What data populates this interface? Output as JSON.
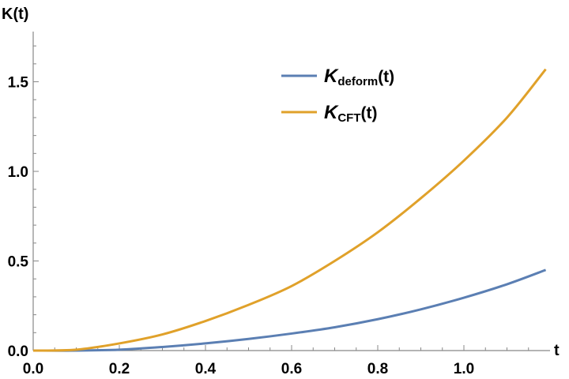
{
  "chart_data": {
    "type": "line",
    "xlabel": "t",
    "ylabel": "K(t)",
    "xlim": [
      0.0,
      1.2
    ],
    "ylim": [
      0.0,
      1.78
    ],
    "xticks": [
      0.0,
      0.2,
      0.4,
      0.6,
      0.8,
      1.0
    ],
    "xtick_labels": [
      "0.0",
      "0.2",
      "0.4",
      "0.6",
      "0.8",
      "1.0"
    ],
    "yticks": [
      0.0,
      0.5,
      1.0,
      1.5
    ],
    "ytick_labels": [
      "0.0",
      "0.5",
      "1.0",
      "1.5"
    ],
    "grid": false,
    "legend_position": "top-right",
    "series": [
      {
        "name": "K_deform(t)",
        "label_main": "K",
        "label_sub": "deform",
        "label_tail": "(t)",
        "color": "#5b7fb3",
        "x": [
          0.0,
          0.1,
          0.2,
          0.3,
          0.4,
          0.5,
          0.6,
          0.7,
          0.8,
          0.9,
          1.0,
          1.1,
          1.19
        ],
        "y": [
          0.0,
          0.0,
          0.005,
          0.02,
          0.04,
          0.065,
          0.095,
          0.13,
          0.175,
          0.23,
          0.295,
          0.37,
          0.45
        ]
      },
      {
        "name": "K_CFT(t)",
        "label_main": "K",
        "label_sub": "CFT",
        "label_tail": "(t)",
        "color": "#e0a12a",
        "x": [
          0.0,
          0.1,
          0.2,
          0.3,
          0.4,
          0.5,
          0.6,
          0.7,
          0.8,
          0.9,
          1.0,
          1.1,
          1.19
        ],
        "y": [
          0.0,
          0.005,
          0.04,
          0.09,
          0.165,
          0.255,
          0.36,
          0.5,
          0.66,
          0.85,
          1.06,
          1.3,
          1.57
        ]
      }
    ]
  }
}
